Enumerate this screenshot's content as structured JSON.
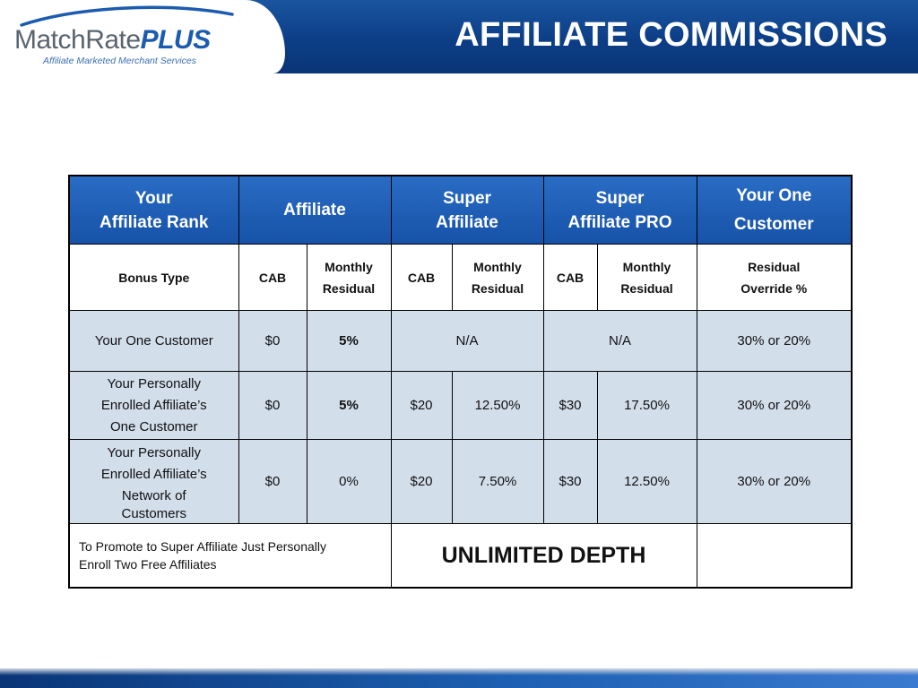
{
  "logo": {
    "name_part1": "MatchRate",
    "name_part2": "PLUS",
    "tagline": "Affiliate Marketed Merchant Services"
  },
  "title": "AFFILIATE COMMISSIONS",
  "colors": {
    "header_blue": "#0c3e86",
    "table_header_blue": "#1b5bb0",
    "row_light_blue": "#d3deeb"
  },
  "table": {
    "headers": {
      "rank_line1": "Your",
      "rank_line2": "Affiliate Rank",
      "affiliate": "Affiliate",
      "super_line1": "Super",
      "super_line2": "Affiliate",
      "pro_line1": "Super",
      "pro_line2": "Affiliate PRO",
      "one_line1": "Your One",
      "one_line2": "Customer"
    },
    "subheaders": {
      "bonus_type": "Bonus Type",
      "cab1": "CAB",
      "monthly1_line1": "Monthly",
      "monthly1_line2": "Residual",
      "cab2": "CAB",
      "monthly2_line1": "Monthly",
      "monthly2_line2": "Residual",
      "cab3": "CAB",
      "monthly3_line1": "Monthly",
      "monthly3_line2": "Residual",
      "residual_line1": "Residual",
      "residual_line2": "Override %"
    },
    "rows": [
      {
        "label_line1": "Your One Customer",
        "affiliate_cab": "$0",
        "affiliate_monthly": "5%",
        "super": "N/A",
        "pro": "N/A",
        "override": "30% or 20%"
      },
      {
        "label_line1": "Your Personally",
        "label_line2": "Enrolled Affiliate’s",
        "label_line3": "One Customer",
        "affiliate_cab": "$0",
        "affiliate_monthly": "5%",
        "super_cab": "$20",
        "super_monthly": "12.50%",
        "pro_cab": "$30",
        "pro_monthly": "17.50%",
        "override": "30% or 20%"
      },
      {
        "label_line1": "Your Personally",
        "label_line2": "Enrolled Affiliate’s",
        "label_line3": "Network of",
        "label_line4": "Customers",
        "affiliate_cab": "$0",
        "affiliate_monthly": "0%",
        "super_cab": "$20",
        "super_monthly": "7.50%",
        "pro_cab": "$30",
        "pro_monthly": "12.50%",
        "override": "30% or 20%"
      }
    ],
    "footer": {
      "promo_line1": "To Promote to Super Affiliate Just Personally",
      "promo_line2": "Enroll Two Free Affiliates",
      "depth": "UNLIMITED DEPTH"
    }
  }
}
